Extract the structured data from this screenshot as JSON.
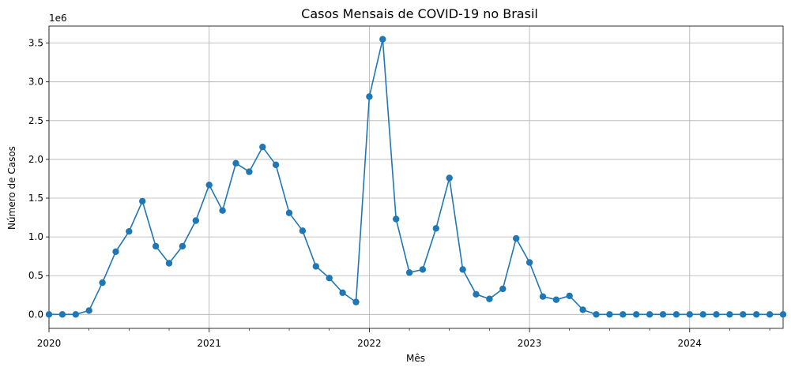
{
  "chart_data": {
    "type": "line",
    "title": "Casos Mensais de COVID-19 no Brasil",
    "xlabel": "Mês",
    "ylabel": "Número de Casos",
    "y_offset_label": "1e6",
    "grid": true,
    "x_start": "2020-01",
    "x_end": "2024-08",
    "y_lim": [
      -0.18,
      3.72
    ],
    "x_ticks": [
      "2020",
      "2021",
      "2022",
      "2023",
      "2024"
    ],
    "y_ticks": [
      "0.0",
      "0.5",
      "1.0",
      "1.5",
      "2.0",
      "2.5",
      "3.0",
      "3.5"
    ],
    "color": "#1f77b4",
    "series": [
      {
        "x": [
          "2020-01",
          "2020-02",
          "2020-03",
          "2020-04",
          "2020-05",
          "2020-06",
          "2020-07",
          "2020-08",
          "2020-09",
          "2020-10",
          "2020-11",
          "2020-12",
          "2021-01",
          "2021-02",
          "2021-03",
          "2021-04",
          "2021-05",
          "2021-06",
          "2021-07",
          "2021-08",
          "2021-09",
          "2021-10",
          "2021-11",
          "2021-12",
          "2022-01",
          "2022-02",
          "2022-03",
          "2022-04",
          "2022-05",
          "2022-06",
          "2022-07",
          "2022-08",
          "2022-09",
          "2022-10",
          "2022-11",
          "2022-12",
          "2023-01",
          "2023-02",
          "2023-03",
          "2023-04",
          "2023-05",
          "2023-06",
          "2023-07",
          "2023-08",
          "2023-09",
          "2023-10",
          "2023-11",
          "2023-12",
          "2024-01",
          "2024-02",
          "2024-03",
          "2024-04",
          "2024-05",
          "2024-06",
          "2024-07",
          "2024-08"
        ],
        "values": [
          0.0,
          0.0,
          0.0,
          0.05,
          0.41,
          0.81,
          1.07,
          1.46,
          0.88,
          0.66,
          0.88,
          1.21,
          1.67,
          1.34,
          1.95,
          1.84,
          2.16,
          1.93,
          1.31,
          1.08,
          0.62,
          0.47,
          0.28,
          0.16,
          2.81,
          3.55,
          1.23,
          0.54,
          0.58,
          1.11,
          1.76,
          0.58,
          0.26,
          0.2,
          0.33,
          0.98,
          0.67,
          0.23,
          0.19,
          0.24,
          0.06,
          0.0,
          0.0,
          0.0,
          0.0,
          0.0,
          0.0,
          0.0,
          0.0,
          0.0,
          0.0,
          0.0,
          0.0,
          0.0,
          0.0,
          0.0
        ]
      }
    ]
  }
}
